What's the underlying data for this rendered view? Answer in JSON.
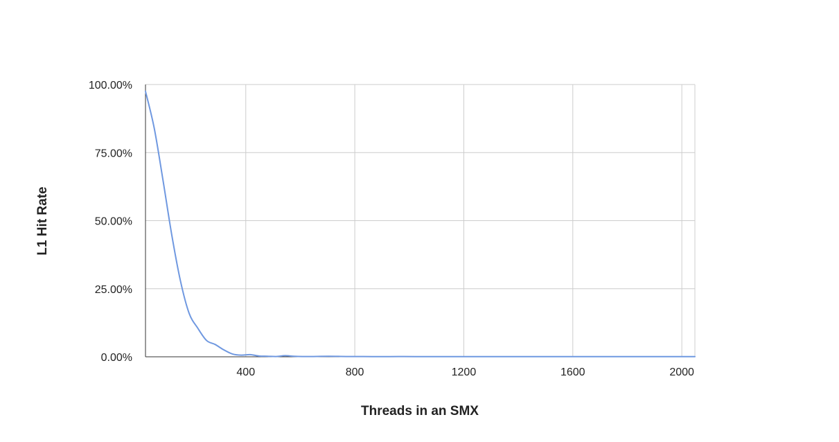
{
  "chart_data": {
    "type": "line",
    "title": "",
    "xlabel": "Threads in an SMX",
    "ylabel": "L1 Hit Rate",
    "xlim": [
      32,
      2048
    ],
    "ylim": [
      0,
      100
    ],
    "x_ticks": [
      400,
      800,
      1200,
      1600,
      2000
    ],
    "x_tick_labels": [
      "400",
      "800",
      "1200",
      "1600",
      "2000"
    ],
    "y_ticks": [
      0,
      25,
      50,
      75,
      100
    ],
    "y_tick_labels": [
      "0.00%",
      "25.00%",
      "50.00%",
      "75.00%",
      "100.00%"
    ],
    "grid": true,
    "legend": "none",
    "series_color": "#6f98e0",
    "series": [
      {
        "x": [
          32,
          64,
          96,
          128,
          160,
          192,
          224,
          256,
          288,
          320,
          352,
          384,
          416,
          448,
          480,
          512,
          544,
          576,
          608,
          640,
          704,
          768,
          832,
          896,
          960,
          1024,
          1152,
          1280,
          1408,
          1536,
          1664,
          1792,
          1920,
          2048
        ],
        "y": [
          97.5,
          84,
          65,
          45,
          28,
          16,
          10.5,
          6,
          4.5,
          2.5,
          1,
          0.6,
          0.8,
          0.3,
          0.2,
          0.1,
          0.4,
          0.2,
          0.1,
          0.1,
          0.2,
          0.1,
          0.1,
          0.05,
          0.1,
          0.05,
          0.05,
          0.05,
          0.05,
          0.05,
          0.05,
          0.05,
          0.05,
          0.05
        ]
      }
    ]
  }
}
